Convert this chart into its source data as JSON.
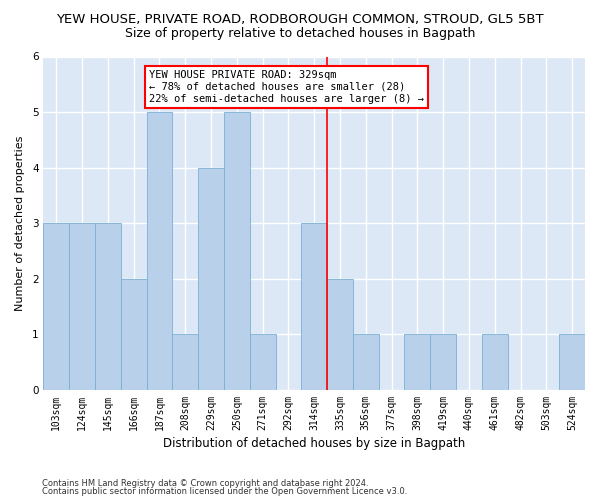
{
  "title1": "YEW HOUSE, PRIVATE ROAD, RODBOROUGH COMMON, STROUD, GL5 5BT",
  "title2": "Size of property relative to detached houses in Bagpath",
  "xlabel": "Distribution of detached houses by size in Bagpath",
  "ylabel": "Number of detached properties",
  "categories": [
    "103sqm",
    "124sqm",
    "145sqm",
    "166sqm",
    "187sqm",
    "208sqm",
    "229sqm",
    "250sqm",
    "271sqm",
    "292sqm",
    "314sqm",
    "335sqm",
    "356sqm",
    "377sqm",
    "398sqm",
    "419sqm",
    "440sqm",
    "461sqm",
    "482sqm",
    "503sqm",
    "524sqm"
  ],
  "values": [
    3,
    3,
    3,
    2,
    5,
    1,
    4,
    5,
    1,
    0,
    3,
    2,
    1,
    0,
    1,
    1,
    0,
    1,
    0,
    0,
    1
  ],
  "bar_color": "#b8d0ea",
  "bar_edge_color": "#7aafd4",
  "red_line_x": 10.5,
  "annotation_title": "YEW HOUSE PRIVATE ROAD: 329sqm",
  "annotation_line1": "← 78% of detached houses are smaller (28)",
  "annotation_line2": "22% of semi-detached houses are larger (8) →",
  "footnote1": "Contains HM Land Registry data © Crown copyright and database right 2024.",
  "footnote2": "Contains public sector information licensed under the Open Government Licence v3.0.",
  "ylim": [
    0,
    6
  ],
  "yticks": [
    0,
    1,
    2,
    3,
    4,
    5,
    6
  ],
  "background_color": "#dce8f5",
  "plot_bg_color": "#dce8f5",
  "grid_color": "#ffffff",
  "fig_bg_color": "#ffffff",
  "title1_fontsize": 9.5,
  "title2_fontsize": 9,
  "tick_fontsize": 7,
  "xlabel_fontsize": 8.5,
  "ylabel_fontsize": 8,
  "annot_fontsize": 7.5
}
